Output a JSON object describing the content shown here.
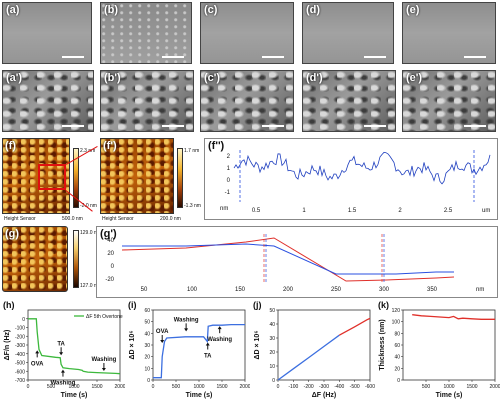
{
  "top_row": {
    "labels": [
      "(a)",
      "(b)",
      "(c)",
      "(d)",
      "(e)"
    ],
    "labels_prime": [
      "(a')",
      "(b')",
      "(c')",
      "(d')",
      "(e')"
    ]
  },
  "afm": {
    "f_label": "(f)",
    "f_prime_label": "(f')",
    "f_dprime_label": "(f'')",
    "g_label": "(g)",
    "g_prime_label": "(g')",
    "f_scale_top": "2.3 nm",
    "f_scale_bot": "-2.0 nm",
    "f_sensor": "Height Sensor",
    "f_len": "500.0 nm",
    "fp_scale_top": "1.7 nm",
    "fp_scale_bot": "-1.3 nm",
    "fp_sensor": "Height Sensor",
    "fp_len": "200.0 nm",
    "g_scale_top": "129.0 nm",
    "g_scale_bot": "127.0 nm"
  },
  "f_profile": {
    "y_unit": "nm",
    "x_unit": "um",
    "y_ticks": [
      "2",
      "1",
      "0",
      "-1"
    ],
    "x_ticks": [
      "0.5",
      "1",
      "1.5",
      "2",
      "2.5"
    ],
    "color": "#1f3fbf"
  },
  "g_profile": {
    "x_unit": "nm",
    "y_ticks": [
      "40",
      "20",
      "0",
      "-20"
    ],
    "x_ticks": [
      "50",
      "100",
      "150",
      "200",
      "250",
      "300",
      "350"
    ],
    "colors": [
      "#e0302a",
      "#2a4fe0"
    ]
  },
  "chart_data": [
    {
      "panel": "(h)",
      "type": "line",
      "legend": "ΔF 5th Overtone",
      "xlabel": "Time (s)",
      "ylabel": "ΔF/n (Hz)",
      "xlim": [
        0,
        2000
      ],
      "ylim": [
        -700,
        100
      ],
      "x_ticks": [
        0,
        500,
        1000,
        1500,
        2000
      ],
      "y_ticks": [
        0,
        -100,
        -200,
        -300,
        -400,
        -500,
        -600,
        -700
      ],
      "annotations": [
        "OVA",
        "TA",
        "Washing",
        "Washing"
      ],
      "series": [
        {
          "color": "#3cb83c",
          "x": [
            0,
            180,
            200,
            240,
            300,
            600,
            700,
            720,
            760,
            900,
            1100,
            1180,
            1200,
            1300,
            1500,
            1700,
            1900,
            2000
          ],
          "y": [
            0,
            0,
            -150,
            -350,
            -420,
            -440,
            -445,
            -520,
            -560,
            -570,
            -580,
            -590,
            -600,
            -610,
            -615,
            -620,
            -625,
            -628
          ]
        }
      ]
    },
    {
      "panel": "(i)",
      "type": "line",
      "xlabel": "Time (s)",
      "ylabel": "ΔD × 10⁶",
      "xlim": [
        0,
        2000
      ],
      "ylim": [
        0,
        60
      ],
      "x_ticks": [
        0,
        500,
        1000,
        1500,
        2000
      ],
      "y_ticks": [
        0,
        10,
        20,
        30,
        40,
        50,
        60
      ],
      "annotations": [
        "OVA",
        "Washing",
        "TA",
        "Washing"
      ],
      "series": [
        {
          "color": "#3c6fe0",
          "x": [
            0,
            180,
            200,
            250,
            300,
            700,
            1100,
            1180,
            1200,
            1300,
            1500,
            1700,
            2000
          ],
          "y": [
            2,
            2,
            20,
            33,
            36,
            37,
            37,
            33,
            46,
            47,
            47,
            47.5,
            47.5
          ]
        }
      ]
    },
    {
      "panel": "(j)",
      "type": "line",
      "xlabel": "ΔF (Hz)",
      "ylabel": "ΔD × 10⁶",
      "xlim": [
        0,
        -600
      ],
      "ylim": [
        0,
        50
      ],
      "x_ticks": [
        0,
        -100,
        -200,
        -300,
        -400,
        -500,
        -600
      ],
      "y_ticks": [
        0,
        10,
        20,
        30,
        40,
        50
      ],
      "series": [
        {
          "color": "#3c6fe0",
          "x": [
            0,
            -100,
            -200,
            -300,
            -400
          ],
          "y": [
            0,
            8,
            16,
            24,
            32
          ]
        },
        {
          "color": "#e0302a",
          "x": [
            -400,
            -500,
            -580,
            -600
          ],
          "y": [
            32,
            38,
            43,
            44
          ]
        }
      ]
    },
    {
      "panel": "(k)",
      "type": "line",
      "xlabel": "Time (s)",
      "ylabel": "Thickness (nm)",
      "xlim": [
        0,
        2000
      ],
      "ylim": [
        0,
        120
      ],
      "x_ticks": [
        500,
        1000,
        1500,
        2000
      ],
      "y_ticks": [
        0,
        20,
        40,
        60,
        80,
        100,
        120
      ],
      "series": [
        {
          "color": "#e0302a",
          "x": [
            200,
            400,
            600,
            800,
            1000,
            1100,
            1200,
            1300,
            1500,
            1700,
            1900,
            2000
          ],
          "y": [
            112,
            110,
            109,
            108,
            107,
            109,
            105,
            106,
            105,
            104,
            104,
            104
          ]
        }
      ]
    }
  ]
}
